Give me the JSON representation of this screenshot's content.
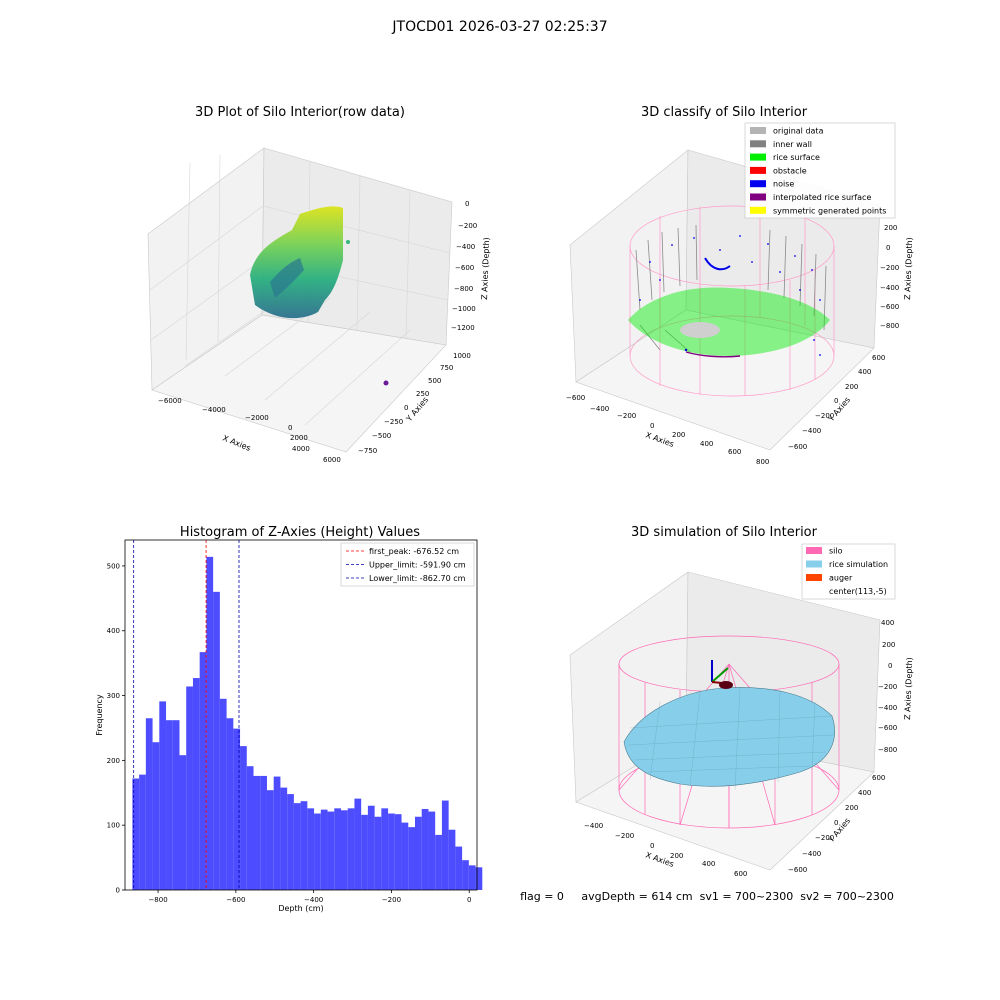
{
  "suptitle": "JTOCD01 2026-03-27 02:25:37",
  "status_line": "flag = 0     avgDepth = 614 cm  sv1 = 700~2300  sv2 = 700~2300",
  "chart_data": [
    {
      "type": "scatter3d",
      "title": "3D Plot of Silo Interior(row data)",
      "xlabel": "X Axies",
      "ylabel": "Y Axies",
      "zlabel": "Z Axies (Depth)",
      "xticks": [
        "−6000",
        "−4000",
        "−2000",
        "0",
        "2000",
        "4000",
        "6000"
      ],
      "yticks": [
        "1000",
        "750",
        "500",
        "250",
        "0",
        "−250",
        "−500",
        "−750"
      ],
      "zticks": [
        "0",
        "−200",
        "−400",
        "−600",
        "−800",
        "−1000",
        "−1200"
      ],
      "colormap": "viridis",
      "colors": {
        "pane": "#f2f2f2",
        "grid": "#d8d8d8"
      }
    },
    {
      "type": "scatter3d",
      "title": "3D classify of Silo Interior",
      "xlabel": "X Axies",
      "ylabel": "Y Axies",
      "zlabel": "Z Axies (Depth)",
      "xticks": [
        "−600",
        "−400",
        "−200",
        "0",
        "200",
        "400",
        "600",
        "800"
      ],
      "yticks": [
        "600",
        "400",
        "200",
        "0",
        "−200",
        "−400",
        "−600"
      ],
      "zticks": [
        "200",
        "0",
        "−200",
        "−400",
        "−600",
        "−800"
      ],
      "legend_position": "top-right",
      "legend": [
        {
          "label": "original data",
          "color": "#b4b4b4"
        },
        {
          "label": "inner wall",
          "color": "#808080"
        },
        {
          "label": "rice surface",
          "color": "#00ee00"
        },
        {
          "label": "obstacle",
          "color": "#ff0000"
        },
        {
          "label": "noise",
          "color": "#0000ee"
        },
        {
          "label": "interpolated rice surface",
          "color": "#800080"
        },
        {
          "label": "symmetric generated points",
          "color": "#ffff00"
        }
      ]
    },
    {
      "type": "bar",
      "title": "Histogram of Z-Axies (Height) Values",
      "xlabel": "Depth (cm)",
      "ylabel": "Frequency",
      "xlim": [
        -885,
        20
      ],
      "ylim": [
        0,
        540
      ],
      "xticks": [
        -800,
        -600,
        -400,
        -200,
        0
      ],
      "xtick_labels": [
        "−800",
        "−600",
        "−400",
        "−200",
        "0"
      ],
      "yticks": [
        0,
        100,
        200,
        300,
        400,
        500
      ],
      "yticks_labels": [
        "0",
        "100",
        "200",
        "300",
        "400",
        "500"
      ],
      "bar_color": "#4d4dff",
      "bin_start": -866,
      "bin_width": 17.3,
      "values": [
        172,
        178,
        265,
        228,
        291,
        262,
        262,
        208,
        314,
        327,
        367,
        514,
        460,
        295,
        265,
        249,
        222,
        191,
        176,
        176,
        154,
        175,
        158,
        148,
        134,
        137,
        126,
        118,
        124,
        121,
        126,
        123,
        126,
        141,
        116,
        130,
        113,
        126,
        118,
        117,
        104,
        97,
        113,
        125,
        121,
        85,
        138,
        93,
        67,
        46,
        38,
        35
      ],
      "vlines": [
        {
          "label": "first_peak: -676.52 cm",
          "x": -676.52,
          "color": "#ff0000"
        },
        {
          "label": "Upper_limit: -591.90 cm",
          "x": -591.9,
          "color": "#0000aa"
        },
        {
          "label": "Lower_limit: -862.70 cm",
          "x": -862.7,
          "color": "#0000aa"
        }
      ],
      "legend_position": "top-right"
    },
    {
      "type": "surface3d",
      "title": "3D simulation of Silo Interior",
      "xlabel": "X Axies",
      "ylabel": "Y Axies",
      "zlabel": "Z Axies (Depth)",
      "xticks": [
        "−400",
        "−200",
        "0",
        "200",
        "400",
        "600"
      ],
      "yticks": [
        "600",
        "400",
        "200",
        "0",
        "−200",
        "−400",
        "−600"
      ],
      "zticks": [
        "400",
        "200",
        "0",
        "−200",
        "−400",
        "−600",
        "−800"
      ],
      "legend_position": "top-right",
      "legend": [
        {
          "label": "silo",
          "color": "#ff69b4"
        },
        {
          "label": "rice simulation",
          "color": "#87ceeb"
        },
        {
          "label": "auger",
          "color": "#ff4500"
        },
        {
          "label": "center(113,-5)",
          "color": "#ffffff"
        }
      ]
    }
  ]
}
